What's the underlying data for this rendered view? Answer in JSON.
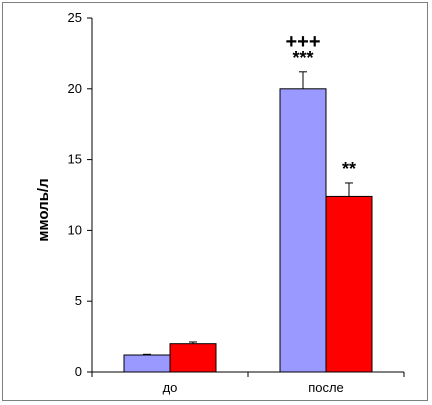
{
  "chart_data": {
    "type": "bar",
    "categories": [
      "до",
      "после"
    ],
    "series": [
      {
        "color": "#9999ff",
        "values": [
          1.2,
          20.0
        ],
        "errors": [
          0.05,
          1.2
        ]
      },
      {
        "color": "#ff0000",
        "values": [
          2.0,
          12.4
        ],
        "errors": [
          0.12,
          0.95
        ]
      }
    ],
    "ylabel": "ммоль/л",
    "ylim": [
      0,
      25
    ],
    "yticks": [
      0,
      5,
      10,
      15,
      20,
      25
    ],
    "grid": false,
    "annotations": [
      {
        "series": 0,
        "category": 1,
        "text": "***"
      },
      {
        "series": 0,
        "category": 1,
        "text": "+++"
      },
      {
        "series": 1,
        "category": 1,
        "text": "**"
      }
    ]
  }
}
